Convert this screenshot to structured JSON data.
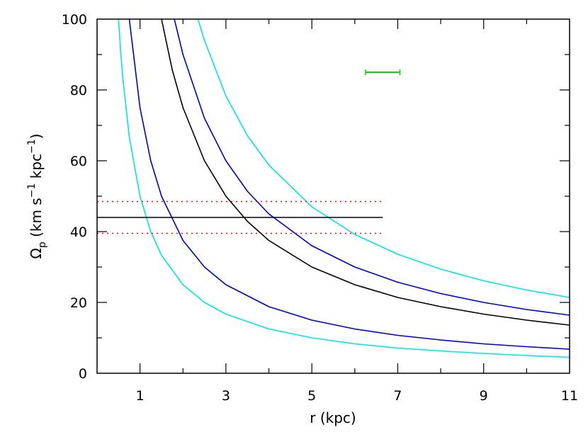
{
  "chart_data": {
    "type": "line",
    "title": "",
    "xlabel": "r (kpc)",
    "ylabel_parts": [
      "Ω",
      "p",
      " (km s",
      "−1",
      " kpc",
      "−1",
      ")"
    ],
    "xlim": [
      0,
      11
    ],
    "ylim": [
      0,
      100
    ],
    "x_ticks": [
      1,
      3,
      5,
      7,
      9,
      11
    ],
    "y_ticks": [
      0,
      20,
      40,
      60,
      80,
      100
    ],
    "x_minor_step": 1,
    "y_minor_step": 10,
    "grid": false,
    "curves": [
      {
        "color": "#00e5e5",
        "points": [
          [
            0.5,
            100
          ],
          [
            0.55,
            90.9
          ],
          [
            0.6,
            83.3
          ],
          [
            0.75,
            66.7
          ],
          [
            1.0,
            50.0
          ],
          [
            1.25,
            40.0
          ],
          [
            1.5,
            33.3
          ],
          [
            2.0,
            25.0
          ],
          [
            2.5,
            20.0
          ],
          [
            3.0,
            16.7
          ],
          [
            4.0,
            12.5
          ],
          [
            5.0,
            10.0
          ],
          [
            6.0,
            8.3
          ],
          [
            7.0,
            7.1
          ],
          [
            8.0,
            6.3
          ],
          [
            9.0,
            5.6
          ],
          [
            10.0,
            5.0
          ],
          [
            11.0,
            4.5
          ]
        ]
      },
      {
        "color": "#0000cc",
        "points": [
          [
            0.75,
            100
          ],
          [
            1.0,
            75.0
          ],
          [
            1.25,
            60.0
          ],
          [
            1.5,
            50.0
          ],
          [
            2.0,
            37.5
          ],
          [
            2.5,
            30.0
          ],
          [
            3.0,
            25.0
          ],
          [
            4.0,
            18.8
          ],
          [
            5.0,
            15.0
          ],
          [
            6.0,
            12.5
          ],
          [
            7.0,
            10.7
          ],
          [
            8.0,
            9.4
          ],
          [
            9.0,
            8.3
          ],
          [
            10.0,
            7.5
          ],
          [
            11.0,
            6.8
          ]
        ]
      },
      {
        "color": "#000000",
        "points": [
          [
            1.5,
            100
          ],
          [
            1.75,
            85.7
          ],
          [
            2.0,
            75.0
          ],
          [
            2.5,
            60.0
          ],
          [
            3.0,
            50.0
          ],
          [
            3.5,
            42.9
          ],
          [
            4.0,
            37.5
          ],
          [
            5.0,
            30.0
          ],
          [
            6.0,
            25.0
          ],
          [
            7.0,
            21.4
          ],
          [
            8.0,
            18.8
          ],
          [
            9.0,
            16.7
          ],
          [
            10.0,
            15.0
          ],
          [
            11.0,
            13.6
          ]
        ]
      },
      {
        "color": "#0000cc",
        "points": [
          [
            1.8,
            100
          ],
          [
            2.0,
            90.0
          ],
          [
            2.5,
            72.0
          ],
          [
            3.0,
            60.0
          ],
          [
            3.5,
            51.4
          ],
          [
            4.0,
            45.0
          ],
          [
            5.0,
            36.0
          ],
          [
            6.0,
            30.0
          ],
          [
            7.0,
            25.7
          ],
          [
            8.0,
            22.5
          ],
          [
            9.0,
            20.0
          ],
          [
            10.0,
            18.0
          ],
          [
            11.0,
            16.4
          ]
        ]
      },
      {
        "color": "#00e5e5",
        "points": [
          [
            2.35,
            100
          ],
          [
            2.5,
            94.0
          ],
          [
            3.0,
            78.3
          ],
          [
            3.5,
            67.1
          ],
          [
            4.0,
            58.8
          ],
          [
            5.0,
            47.0
          ],
          [
            6.0,
            39.2
          ],
          [
            7.0,
            33.6
          ],
          [
            8.0,
            29.4
          ],
          [
            9.0,
            26.1
          ],
          [
            10.0,
            23.5
          ],
          [
            11.0,
            21.4
          ]
        ]
      }
    ],
    "horizontal_lines": [
      {
        "y": 44,
        "x_range": [
          0,
          6.65
        ],
        "color": "#000000",
        "style": "solid"
      },
      {
        "y": 48.5,
        "x_range": [
          0,
          6.65
        ],
        "color": "#ff0000",
        "style": "dotted"
      },
      {
        "y": 39.5,
        "x_range": [
          0,
          6.65
        ],
        "color": "#ff0000",
        "style": "dotted"
      }
    ],
    "error_bar": {
      "x_range": [
        6.25,
        7.05
      ],
      "y": 85,
      "color": "#00dd00"
    }
  }
}
